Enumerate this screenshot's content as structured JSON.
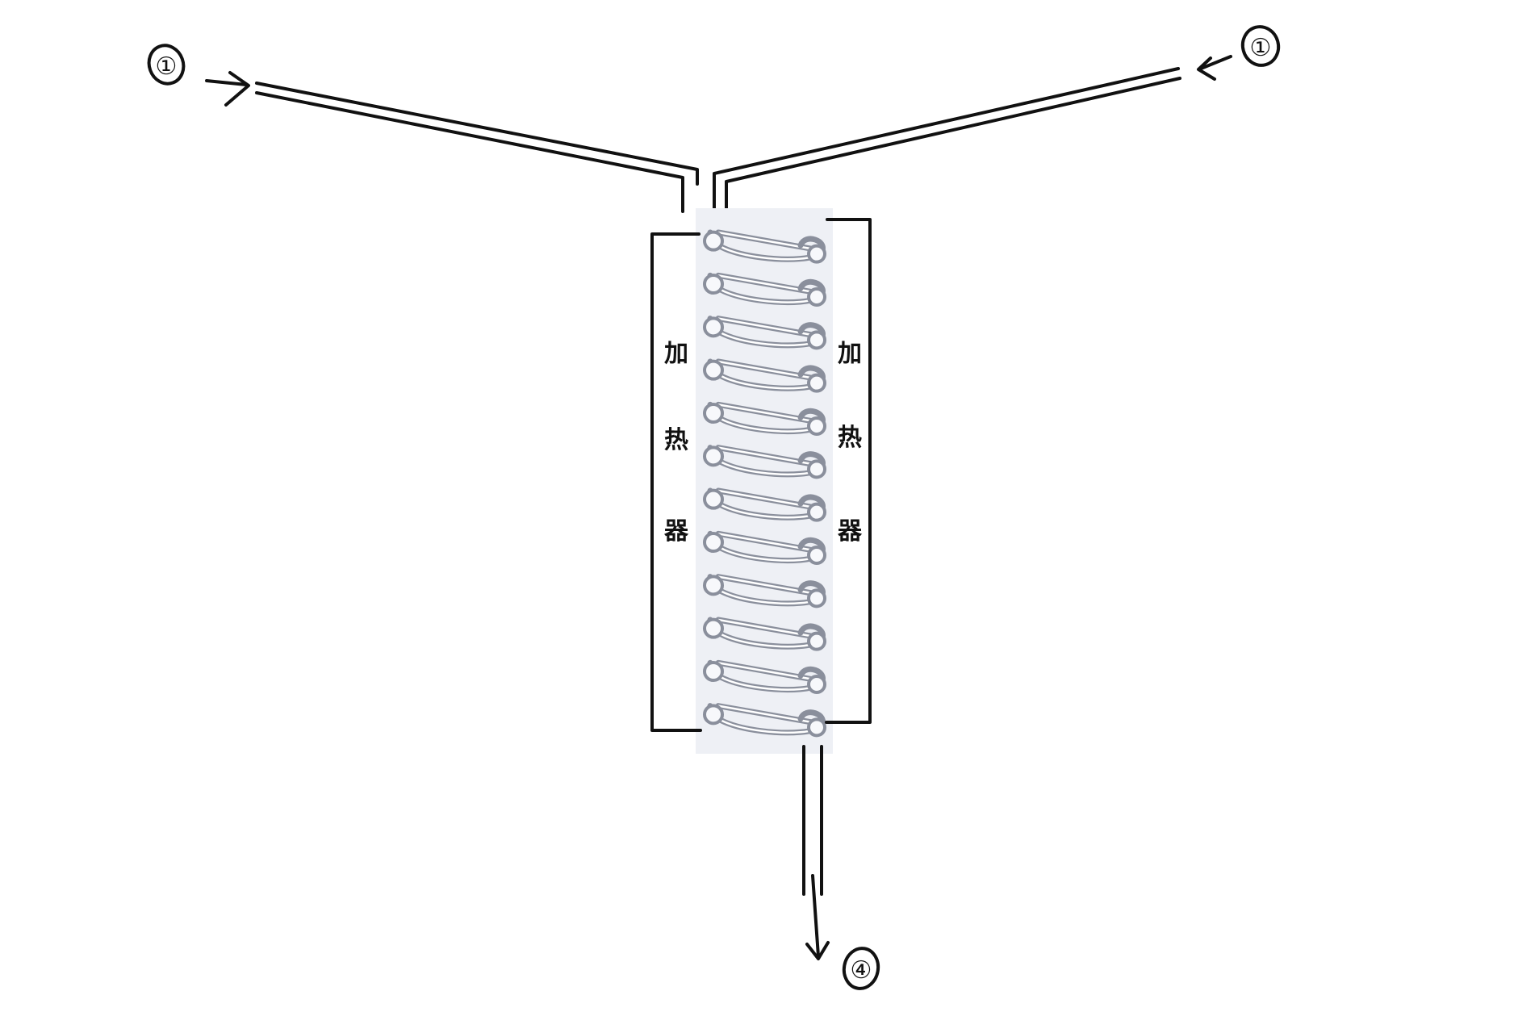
{
  "labels": {
    "inlet_left": "①",
    "inlet_right": "①",
    "outlet": "④"
  },
  "heater_left": {
    "chars": [
      "加",
      "热",
      "器"
    ]
  },
  "heater_right": {
    "chars": [
      "加",
      "热",
      "器"
    ]
  },
  "coil": {
    "turns": 12
  },
  "colors": {
    "ink": "#111111",
    "tube_bg": "#eef0f5",
    "coil_stroke": "#8a8f9c",
    "coil_highlight": "#ffffff"
  }
}
